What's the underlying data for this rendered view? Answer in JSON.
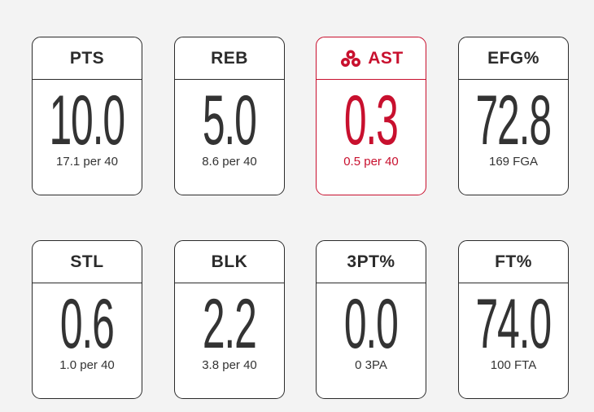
{
  "cards": [
    {
      "label": "PTS",
      "value": "10.0",
      "sub": "17.1 per 40"
    },
    {
      "label": "REB",
      "value": "5.0",
      "sub": "8.6 per 40"
    },
    {
      "label": "AST",
      "value": "0.3",
      "sub": "0.5 per 40"
    },
    {
      "label": "EFG%",
      "value": "72.8",
      "sub": "169 FGA"
    },
    {
      "label": "STL",
      "value": "0.6",
      "sub": "1.0 per 40"
    },
    {
      "label": "BLK",
      "value": "2.2",
      "sub": "3.8 per 40"
    },
    {
      "label": "3PT%",
      "value": "0.0",
      "sub": "0 3PA"
    },
    {
      "label": "FT%",
      "value": "74.0",
      "sub": "100 FTA"
    }
  ]
}
